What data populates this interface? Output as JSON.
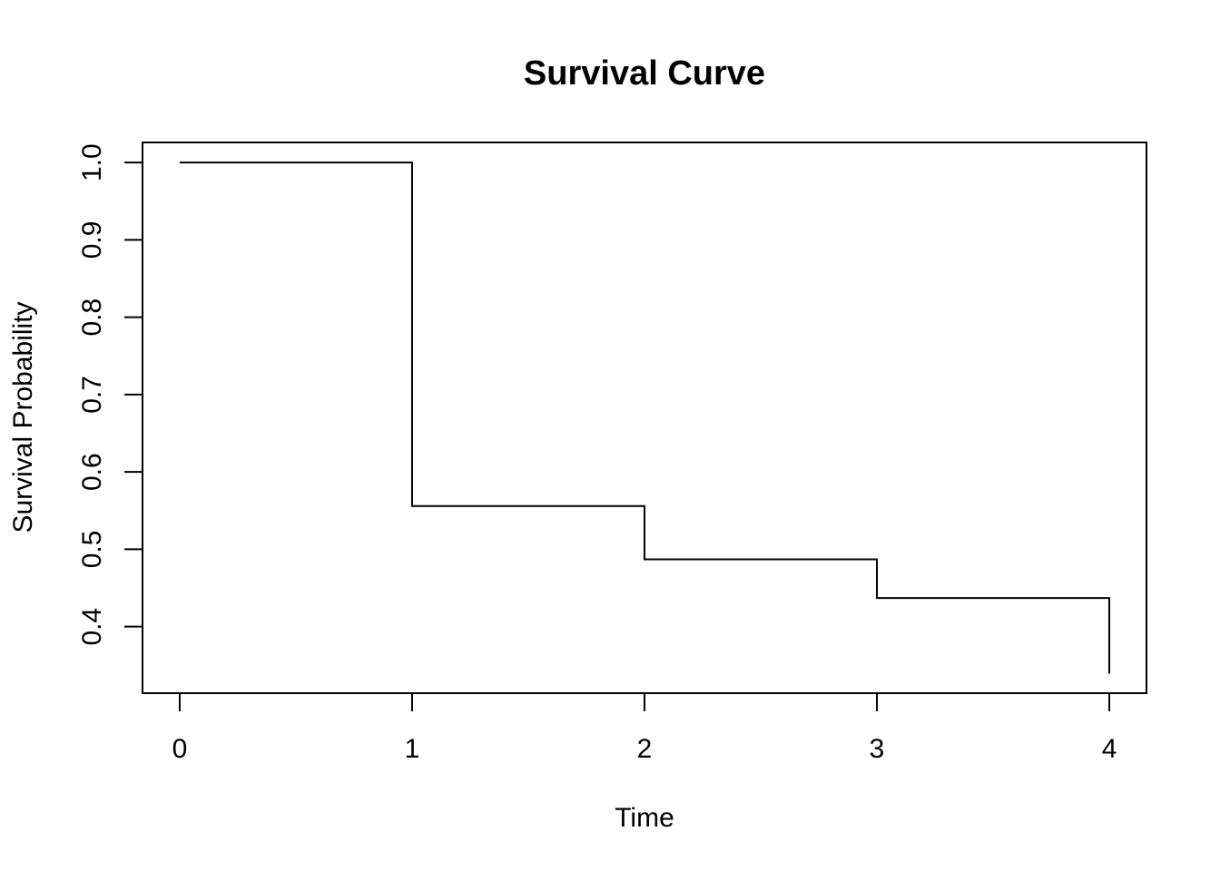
{
  "chart_data": {
    "type": "line",
    "title": "Survival Curve",
    "xlabel": "Time",
    "ylabel": "Survival Probability",
    "xlim": [
      -0.16,
      4.16
    ],
    "ylim": [
      0.314,
      1.026
    ],
    "x_ticks": [
      0,
      1,
      2,
      3,
      4
    ],
    "y_ticks": [
      0.4,
      0.5,
      0.6,
      0.7,
      0.8,
      0.9,
      1.0
    ],
    "x_tick_labels": [
      "0",
      "1",
      "2",
      "3",
      "4"
    ],
    "y_tick_labels": [
      "0.4",
      "0.5",
      "0.6",
      "0.7",
      "0.8",
      "0.9",
      "1.0"
    ],
    "grid": false,
    "step": "post",
    "series": [
      {
        "x": [
          0,
          1,
          2,
          3,
          4
        ],
        "y": [
          1.0,
          0.556,
          0.487,
          0.437,
          0.339
        ]
      }
    ],
    "colors": {
      "line": "#000000",
      "background": "#ffffff"
    }
  }
}
